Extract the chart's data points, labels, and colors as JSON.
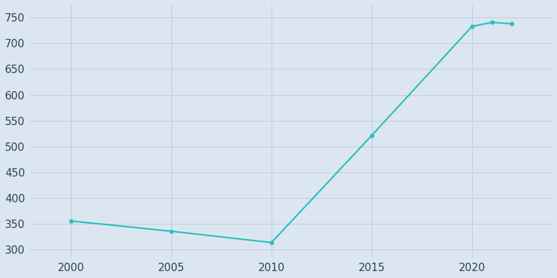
{
  "years": [
    2000,
    2005,
    2010,
    2015,
    2020,
    2021,
    2022
  ],
  "population": [
    355,
    335,
    313,
    521,
    733,
    741,
    738
  ],
  "line_color": "#2abfbf",
  "marker_color": "#2abfbf",
  "background_color": "#dce6f0",
  "grid_color": "#c2cfe0",
  "tick_label_color": "#2a3f5f",
  "xlim": [
    1998,
    2024
  ],
  "ylim": [
    285,
    775
  ],
  "yticks": [
    300,
    350,
    400,
    450,
    500,
    550,
    600,
    650,
    700,
    750
  ],
  "xticks": [
    2000,
    2005,
    2010,
    2015,
    2020
  ],
  "line_width": 1.6,
  "marker_size": 3.5,
  "figsize": [
    8.0,
    4.0
  ],
  "dpi": 100
}
